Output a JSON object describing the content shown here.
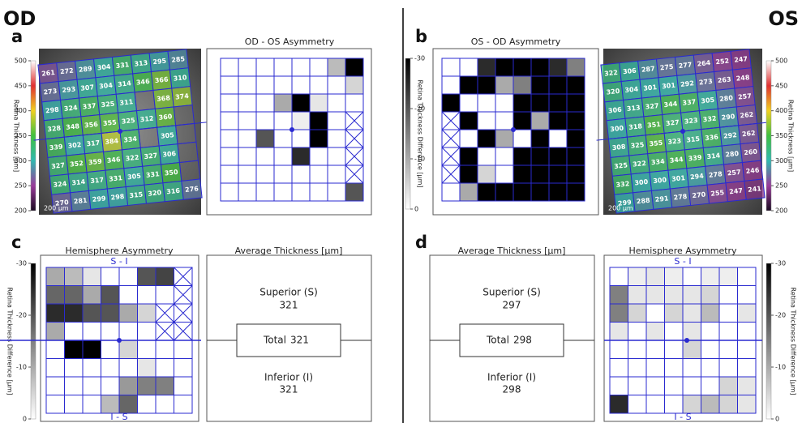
{
  "header": {
    "left": "OD",
    "right": "OS"
  },
  "thickness_scale": {
    "label": "Retina Thickness [µm]",
    "lim": [
      200,
      500
    ],
    "ticks": [
      200,
      250,
      300,
      350,
      400,
      450,
      500
    ],
    "colors": [
      "#1b0b22",
      "#9a3a9a",
      "#30b8b0",
      "#40c040",
      "#f0d020",
      "#e03030",
      "#ffffff"
    ]
  },
  "difference_scale": {
    "label": "Retina Thickness Difference [µm]",
    "lim": [
      0,
      -30
    ],
    "ticks": [
      0,
      -10,
      -20,
      -30
    ],
    "colors": [
      "#ffffff",
      "#000000"
    ]
  },
  "scale_bar": "200 µm",
  "panel_a": {
    "letter": "a",
    "map": {
      "rows": [
        [
          261,
          272,
          289,
          304,
          331,
          313,
          295,
          285
        ],
        [
          273,
          293,
          307,
          304,
          314,
          346,
          366,
          310
        ],
        [
          298,
          324,
          337,
          325,
          311,
          null,
          368,
          374
        ],
        [
          328,
          348,
          356,
          355,
          325,
          312,
          360,
          null
        ],
        [
          339,
          302,
          317,
          384,
          334,
          null,
          305,
          null
        ],
        [
          327,
          352,
          359,
          346,
          322,
          327,
          306,
          null
        ],
        [
          324,
          314,
          317,
          331,
          305,
          331,
          350,
          null
        ],
        [
          270,
          281,
          299,
          298,
          315,
          320,
          316,
          276
        ]
      ]
    },
    "asymmetry": {
      "title": "OD - OS Asymmetry",
      "rows": [
        [
          0,
          0,
          0,
          0,
          0,
          0,
          -8,
          -30
        ],
        [
          0,
          0,
          0,
          0,
          0,
          0,
          0,
          -5
        ],
        [
          0,
          0,
          0,
          -10,
          -30,
          -3,
          0,
          0
        ],
        [
          0,
          0,
          0,
          0,
          -2,
          -30,
          0,
          null
        ],
        [
          0,
          0,
          -20,
          0,
          0,
          -30,
          0,
          null
        ],
        [
          0,
          0,
          0,
          0,
          -25,
          0,
          0,
          null
        ],
        [
          0,
          0,
          0,
          0,
          0,
          0,
          0,
          null
        ],
        [
          0,
          0,
          0,
          0,
          0,
          0,
          0,
          -20
        ]
      ]
    }
  },
  "panel_b": {
    "letter": "b",
    "asymmetry": {
      "title": "OS - OD Asymmetry",
      "rows": [
        [
          0,
          0,
          -25,
          -30,
          -30,
          -30,
          -25,
          -15
        ],
        [
          0,
          -30,
          -30,
          -10,
          -15,
          -30,
          -30,
          -30
        ],
        [
          -30,
          0,
          0,
          0,
          -30,
          -30,
          -30,
          -30
        ],
        [
          null,
          -30,
          0,
          0,
          -30,
          -10,
          -30,
          -30
        ],
        [
          null,
          0,
          -30,
          -10,
          0,
          -30,
          0,
          -30
        ],
        [
          null,
          -30,
          0,
          0,
          -30,
          -30,
          -30,
          -30
        ],
        [
          null,
          -30,
          -5,
          0,
          -30,
          -30,
          -30,
          -30
        ],
        [
          0,
          -10,
          -30,
          -30,
          -30,
          -30,
          -30,
          -30
        ]
      ]
    },
    "map": {
      "rows": [
        [
          322,
          306,
          287,
          275,
          277,
          264,
          252,
          247
        ],
        [
          320,
          304,
          301,
          301,
          292,
          273,
          263,
          248
        ],
        [
          306,
          313,
          327,
          344,
          337,
          305,
          280,
          257
        ],
        [
          300,
          318,
          351,
          327,
          323,
          332,
          290,
          262
        ],
        [
          308,
          325,
          355,
          323,
          315,
          336,
          292,
          262
        ],
        [
          325,
          322,
          334,
          344,
          339,
          314,
          280,
          260
        ],
        [
          332,
          300,
          300,
          301,
          294,
          278,
          257,
          246
        ],
        [
          299,
          288,
          291,
          278,
          270,
          255,
          247,
          241
        ]
      ]
    }
  },
  "panel_c": {
    "letter": "c",
    "hemisphere": {
      "title": "Hemisphere Asymmetry",
      "top_label": "S - I",
      "bottom_label": "I - S",
      "rows": [
        [
          -10,
          -8,
          -3,
          0,
          0,
          -20,
          -22,
          null
        ],
        [
          -18,
          -18,
          -10,
          -20,
          0,
          0,
          0,
          null
        ],
        [
          -25,
          -25,
          -20,
          -20,
          -10,
          -5,
          null,
          null
        ],
        [
          -10,
          0,
          0,
          0,
          0,
          0,
          null,
          null
        ],
        [
          0,
          -30,
          -30,
          0,
          -5,
          0,
          0,
          0
        ],
        [
          0,
          0,
          0,
          0,
          0,
          -3,
          0,
          0
        ],
        [
          0,
          0,
          0,
          0,
          -12,
          -15,
          -15,
          0
        ],
        [
          0,
          0,
          0,
          -8,
          -18,
          0,
          0,
          0
        ]
      ]
    },
    "average": {
      "title": "Average Thickness [µm]",
      "superior_label": "Superior (S)",
      "superior": 321,
      "total_label": "Total",
      "total": 321,
      "inferior_label": "Inferior (I)",
      "inferior": 321
    }
  },
  "panel_d": {
    "letter": "d",
    "average": {
      "title": "Average Thickness [µm]",
      "superior_label": "Superior (S)",
      "superior": 297,
      "total_label": "Total",
      "total": 298,
      "inferior_label": "Inferior (I)",
      "inferior": 298
    },
    "hemisphere": {
      "title": "Hemisphere Asymmetry",
      "top_label": "S - I",
      "bottom_label": "I - S",
      "rows": [
        [
          0,
          -2,
          -3,
          -2,
          0,
          -2,
          -2,
          0
        ],
        [
          -15,
          -3,
          -3,
          -3,
          -3,
          -5,
          0,
          0
        ],
        [
          -15,
          -5,
          0,
          -5,
          -3,
          -8,
          0,
          -3
        ],
        [
          -3,
          0,
          -3,
          0,
          -3,
          0,
          0,
          0
        ],
        [
          0,
          0,
          0,
          0,
          -5,
          0,
          0,
          0
        ],
        [
          0,
          0,
          0,
          0,
          0,
          0,
          0,
          0
        ],
        [
          0,
          0,
          0,
          0,
          0,
          0,
          -5,
          -3
        ],
        [
          -25,
          0,
          0,
          0,
          -5,
          -8,
          -5,
          -3
        ]
      ]
    }
  }
}
